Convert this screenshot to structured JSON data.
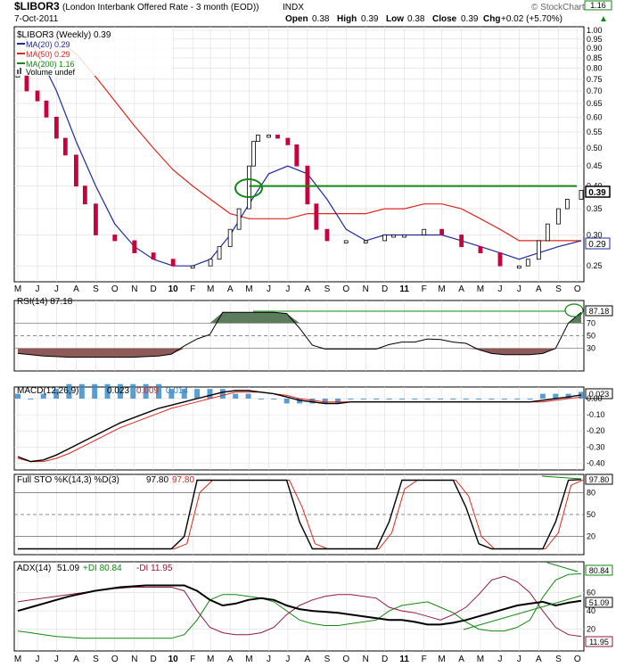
{
  "header": {
    "symbol": "$LIBOR3",
    "name": "(London Interbank Offered Rate - 3 month (EOD))",
    "exchange": "INDX",
    "watermark": "© StockCharts.com",
    "date": "7-Oct-2011",
    "open_label": "Open",
    "open": "0.38",
    "high_label": "High",
    "high": "0.39",
    "low_label": "Low",
    "low": "0.38",
    "close_label": "Close",
    "close": "0.39",
    "chg_label": "Chg",
    "chg": "+0.02 (+5.70%)",
    "chg_arrow": "▲",
    "top_tag": "1.16"
  },
  "legend": {
    "main": "$LIBOR3 (Weekly) 0.39",
    "ma20": "MA(20) 0.29",
    "ma50": "MA(50) 0.29",
    "ma200": "MA(200) 1.16",
    "volume": "Volume undef"
  },
  "colors": {
    "up_candle": "#ffffff",
    "down_candle": "#c8003c",
    "ma20": "#1f2a9c",
    "ma50": "#e0261c",
    "ma200": "#118811",
    "trendline": "#118811",
    "rsi_fill": "#8e5a57",
    "rsi_fill_top": "#5d7b5d",
    "macd_hist": "#2f86c5",
    "price_tag_last": "#000000",
    "di_plus": "#118811",
    "di_minus": "#8e1a3c"
  },
  "x_axis": {
    "labels": [
      "M",
      "J",
      "J",
      "A",
      "S",
      "O",
      "N",
      "D",
      "10",
      "F",
      "M",
      "A",
      "M",
      "J",
      "J",
      "A",
      "S",
      "O",
      "N",
      "D",
      "11",
      "F",
      "M",
      "A",
      "M",
      "J",
      "J",
      "A",
      "S",
      "O"
    ]
  },
  "price_axis": {
    "ticks": [
      "1.00",
      "0.95",
      "0.90",
      "0.85",
      "0.80",
      "0.75",
      "0.70",
      "0.65",
      "0.60",
      "0.55",
      "0.50",
      "0.45",
      "0.40",
      "0.35",
      "0.30",
      "0.25"
    ],
    "last_value": "0.39",
    "ma_value": "0.29"
  },
  "rsi_panel": {
    "label": "RSI(14) 87.18",
    "value": "87.18",
    "ticks": [
      "70",
      "50",
      "30"
    ]
  },
  "macd_panel": {
    "label_prefix": "MACD(12,26,9)",
    "macd": "0.023",
    "signal": "0.009",
    "hist": "0.014",
    "value": "0.023",
    "ticks": [
      "0.00",
      "-0.10",
      "-0.20",
      "-0.30",
      "-0.40"
    ]
  },
  "sto_panel": {
    "label_prefix": "Full STO %K(14,3) %D(3)",
    "k": "97.80",
    "d": "97.80",
    "value": "97.80",
    "ticks": [
      "80",
      "50",
      "20"
    ]
  },
  "adx_panel": {
    "label_prefix": "ADX(14)",
    "adx": "51.09",
    "di_plus_label": "+DI 80.84",
    "di_minus_label": "-DI 11.95",
    "di_plus_value": "80.84",
    "adx_value": "51.09",
    "di_minus_value": "11.95",
    "ticks": [
      "60",
      "40",
      "20"
    ]
  },
  "chart_data": [
    {
      "type": "candlestick",
      "title": "$LIBOR3 (Weekly) 0.39",
      "y_scale": "log",
      "ylim": [
        0.24,
        1.0
      ],
      "x_start": "2009-05-01",
      "x_end": "2011-10-07",
      "series": [
        {
          "name": "$LIBOR3",
          "x": [
            "2009-05-01",
            "2009-05-15",
            "2009-06-01",
            "2009-06-15",
            "2009-07-01",
            "2009-07-15",
            "2009-08-01",
            "2009-08-15",
            "2009-09-01",
            "2009-10-01",
            "2009-11-01",
            "2009-12-01",
            "2010-01-01",
            "2010-02-01",
            "2010-03-01",
            "2010-03-15",
            "2010-04-01",
            "2010-04-15",
            "2010-05-01",
            "2010-05-08",
            "2010-05-15",
            "2010-06-01",
            "2010-06-15",
            "2010-07-01",
            "2010-07-15",
            "2010-08-01",
            "2010-08-15",
            "2010-09-01",
            "2010-10-01",
            "2010-11-01",
            "2010-12-01",
            "2010-12-15",
            "2011-01-01",
            "2011-02-01",
            "2011-03-01",
            "2011-04-01",
            "2011-05-01",
            "2011-06-01",
            "2011-07-01",
            "2011-07-15",
            "2011-08-01",
            "2011-08-15",
            "2011-09-01",
            "2011-09-15",
            "2011-10-07"
          ],
          "values": [
            0.77,
            0.7,
            0.66,
            0.6,
            0.53,
            0.48,
            0.4,
            0.36,
            0.3,
            0.29,
            0.27,
            0.26,
            0.25,
            0.25,
            0.26,
            0.28,
            0.31,
            0.35,
            0.45,
            0.52,
            0.54,
            0.54,
            0.53,
            0.51,
            0.45,
            0.36,
            0.31,
            0.29,
            0.29,
            0.29,
            0.3,
            0.3,
            0.3,
            0.31,
            0.3,
            0.28,
            0.27,
            0.25,
            0.25,
            0.26,
            0.29,
            0.32,
            0.35,
            0.37,
            0.39
          ]
        },
        {
          "name": "MA(20)",
          "x": [
            "2009-05-01",
            "2009-06-01",
            "2009-07-01",
            "2009-08-01",
            "2009-09-01",
            "2009-10-01",
            "2009-11-01",
            "2009-12-01",
            "2010-01-01",
            "2010-02-01",
            "2010-03-01",
            "2010-04-01",
            "2010-05-01",
            "2010-06-01",
            "2010-07-01",
            "2010-08-01",
            "2010-09-01",
            "2010-10-01",
            "2010-11-01",
            "2010-12-01",
            "2011-01-01",
            "2011-02-01",
            "2011-03-01",
            "2011-04-01",
            "2011-05-01",
            "2011-06-01",
            "2011-07-01",
            "2011-08-01",
            "2011-09-01",
            "2011-10-07"
          ],
          "values": [
            1.0,
            0.88,
            0.7,
            0.52,
            0.4,
            0.32,
            0.28,
            0.26,
            0.25,
            0.25,
            0.26,
            0.3,
            0.36,
            0.43,
            0.45,
            0.43,
            0.37,
            0.31,
            0.29,
            0.3,
            0.3,
            0.3,
            0.3,
            0.29,
            0.28,
            0.27,
            0.26,
            0.27,
            0.28,
            0.29
          ]
        },
        {
          "name": "MA(50)",
          "x": [
            "2009-06-15",
            "2009-07-01",
            "2009-08-01",
            "2009-09-01",
            "2009-10-01",
            "2009-11-01",
            "2009-12-01",
            "2010-01-01",
            "2010-02-01",
            "2010-03-01",
            "2010-04-01",
            "2010-05-01",
            "2010-06-01",
            "2010-07-01",
            "2010-08-01",
            "2010-09-01",
            "2010-10-01",
            "2010-11-01",
            "2010-12-01",
            "2011-01-01",
            "2011-02-01",
            "2011-03-01",
            "2011-04-01",
            "2011-05-01",
            "2011-06-01",
            "2011-07-01",
            "2011-08-01",
            "2011-09-01",
            "2011-10-07"
          ],
          "values": [
            1.0,
            0.95,
            0.87,
            0.76,
            0.66,
            0.57,
            0.5,
            0.44,
            0.4,
            0.37,
            0.34,
            0.33,
            0.33,
            0.33,
            0.34,
            0.34,
            0.34,
            0.34,
            0.35,
            0.35,
            0.36,
            0.36,
            0.35,
            0.33,
            0.31,
            0.29,
            0.29,
            0.29,
            0.29
          ]
        },
        {
          "name": "Horizontal trendline",
          "x": [
            "2010-05-01",
            "2011-09-30"
          ],
          "values": [
            0.4,
            0.4
          ]
        }
      ]
    },
    {
      "type": "line",
      "title": "RSI(14) 87.18",
      "ylim": [
        0,
        100
      ],
      "series": [
        {
          "name": "RSI(14)",
          "values": [
            22,
            20,
            18,
            17,
            16,
            16,
            16,
            16,
            16,
            16,
            17,
            18,
            21,
            34,
            45,
            52,
            87,
            87,
            87,
            87,
            87,
            85,
            62,
            35,
            29,
            29,
            29,
            29,
            29,
            36,
            40,
            40,
            45,
            44,
            40,
            38,
            28,
            22,
            20,
            20,
            20,
            22,
            30,
            70,
            87
          ]
        }
      ]
    },
    {
      "type": "line",
      "title": "MACD(12,26,9)",
      "ylim": [
        -0.42,
        0.05
      ],
      "series": [
        {
          "name": "MACD",
          "values": [
            -0.36,
            -0.39,
            -0.38,
            -0.35,
            -0.31,
            -0.27,
            -0.23,
            -0.19,
            -0.15,
            -0.12,
            -0.09,
            -0.06,
            -0.04,
            -0.02,
            0.0,
            0.02,
            0.04,
            0.05,
            0.05,
            0.04,
            0.03,
            0.01,
            -0.01,
            -0.02,
            -0.03,
            -0.03,
            -0.02,
            -0.02,
            -0.02,
            -0.02,
            -0.02,
            -0.02,
            -0.02,
            -0.02,
            -0.02,
            -0.02,
            -0.02,
            -0.02,
            -0.02,
            -0.02,
            -0.02,
            -0.01,
            0.0,
            0.01,
            0.023
          ]
        },
        {
          "name": "Signal",
          "values": [
            -0.37,
            -0.39,
            -0.39,
            -0.37,
            -0.34,
            -0.3,
            -0.26,
            -0.22,
            -0.18,
            -0.15,
            -0.12,
            -0.09,
            -0.06,
            -0.04,
            -0.02,
            0.0,
            0.02,
            0.04,
            0.04,
            0.04,
            0.03,
            0.02,
            0.0,
            -0.01,
            -0.02,
            -0.02,
            -0.02,
            -0.02,
            -0.02,
            -0.02,
            -0.02,
            -0.02,
            -0.02,
            -0.02,
            -0.02,
            -0.02,
            -0.02,
            -0.02,
            -0.02,
            -0.02,
            -0.02,
            -0.02,
            -0.01,
            0.0,
            0.009
          ]
        }
      ]
    },
    {
      "type": "line",
      "title": "Full STO %K(14,3) %D(3)",
      "ylim": [
        0,
        100
      ],
      "series": [
        {
          "name": "%K",
          "values": [
            3,
            3,
            3,
            3,
            3,
            3,
            3,
            3,
            3,
            3,
            3,
            3,
            3,
            20,
            97,
            97,
            97,
            97,
            97,
            97,
            97,
            97,
            40,
            3,
            3,
            3,
            3,
            3,
            3,
            40,
            97,
            97,
            97,
            97,
            97,
            60,
            10,
            3,
            3,
            3,
            3,
            3,
            40,
            97,
            97.8
          ]
        },
        {
          "name": "%D",
          "values": [
            3,
            3,
            3,
            3,
            3,
            3,
            3,
            3,
            3,
            3,
            3,
            3,
            3,
            10,
            80,
            97,
            97,
            97,
            97,
            97,
            97,
            97,
            60,
            10,
            3,
            3,
            3,
            3,
            3,
            25,
            85,
            97,
            97,
            97,
            97,
            75,
            20,
            3,
            3,
            3,
            3,
            3,
            25,
            90,
            97.8
          ]
        }
      ]
    },
    {
      "type": "line",
      "title": "ADX(14)",
      "ylim": [
        0,
        90
      ],
      "series": [
        {
          "name": "ADX",
          "values": [
            40,
            44,
            48,
            52,
            56,
            59,
            62,
            64,
            66,
            67,
            68,
            68,
            68,
            68,
            62,
            52,
            46,
            48,
            52,
            54,
            52,
            46,
            42,
            40,
            39,
            38,
            36,
            34,
            32,
            30,
            30,
            28,
            25,
            25,
            27,
            30,
            34,
            38,
            42,
            46,
            48,
            50,
            46,
            49,
            51.09
          ]
        },
        {
          "name": "+DI",
          "values": [
            18,
            16,
            14,
            12,
            11,
            10,
            10,
            10,
            10,
            10,
            10,
            10,
            10,
            14,
            30,
            52,
            58,
            58,
            56,
            54,
            50,
            40,
            30,
            26,
            24,
            24,
            26,
            28,
            30,
            40,
            46,
            48,
            50,
            44,
            38,
            28,
            20,
            18,
            18,
            22,
            30,
            55,
            74,
            80,
            80.84
          ]
        },
        {
          "name": "-DI",
          "values": [
            50,
            52,
            54,
            56,
            58,
            60,
            62,
            64,
            65,
            66,
            66,
            66,
            66,
            62,
            40,
            22,
            16,
            14,
            14,
            16,
            22,
            36,
            46,
            52,
            56,
            58,
            58,
            56,
            54,
            44,
            40,
            38,
            34,
            30,
            36,
            44,
            58,
            74,
            78,
            72,
            60,
            40,
            22,
            14,
            11.95
          ]
        }
      ]
    }
  ]
}
